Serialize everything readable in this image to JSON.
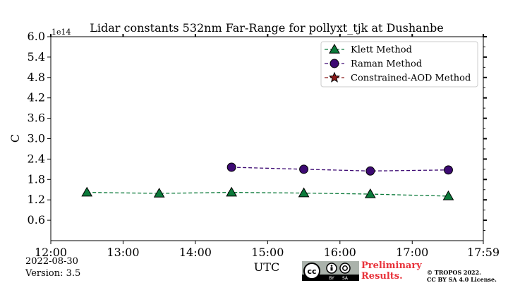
{
  "chart_data": {
    "type": "line",
    "title": "Lidar constants 532nm Far-Range for pollyxt_tjk at Dushanbe",
    "xlabel": "UTC",
    "ylabel": "C",
    "y_offset_label": "1e14",
    "x_ticks": [
      "12:00",
      "13:00",
      "14:00",
      "15:00",
      "16:00",
      "17:00",
      "17:59"
    ],
    "xlim_hours": [
      12.0,
      17.9833
    ],
    "y_ticks": [
      "0.6",
      "1.2",
      "1.8",
      "2.4",
      "3.0",
      "3.6",
      "4.2",
      "4.8",
      "5.4",
      "6.0"
    ],
    "ylim": [
      0,
      6.0
    ],
    "grid": false,
    "legend_position": "top-right",
    "series": [
      {
        "name": "Klett Method",
        "marker": "triangle",
        "color": "#0b7a3a",
        "x_hours": [
          12.5,
          13.5,
          14.5,
          15.5,
          16.42,
          17.5
        ],
        "y": [
          1.42,
          1.39,
          1.42,
          1.4,
          1.37,
          1.31
        ]
      },
      {
        "name": "Raman Method",
        "marker": "circle",
        "color": "#3d0a73",
        "x_hours": [
          14.5,
          15.5,
          16.42,
          17.5
        ],
        "y": [
          2.16,
          2.1,
          2.05,
          2.08
        ]
      },
      {
        "name": "Constrained-AOD Method",
        "marker": "star",
        "color": "#8b1a1a",
        "x_hours": [],
        "y": []
      }
    ]
  },
  "footer": {
    "date": "2022-08-30",
    "version": "Version: 3.5",
    "preliminary_line1": "Preliminary",
    "preliminary_line2": "Results.",
    "copyright_line1": "© TROPOS 2022.",
    "copyright_line2": "CC BY SA 4.0 License.",
    "badge_by": "BY",
    "badge_sa": "SA",
    "badge_cc": "cc"
  }
}
